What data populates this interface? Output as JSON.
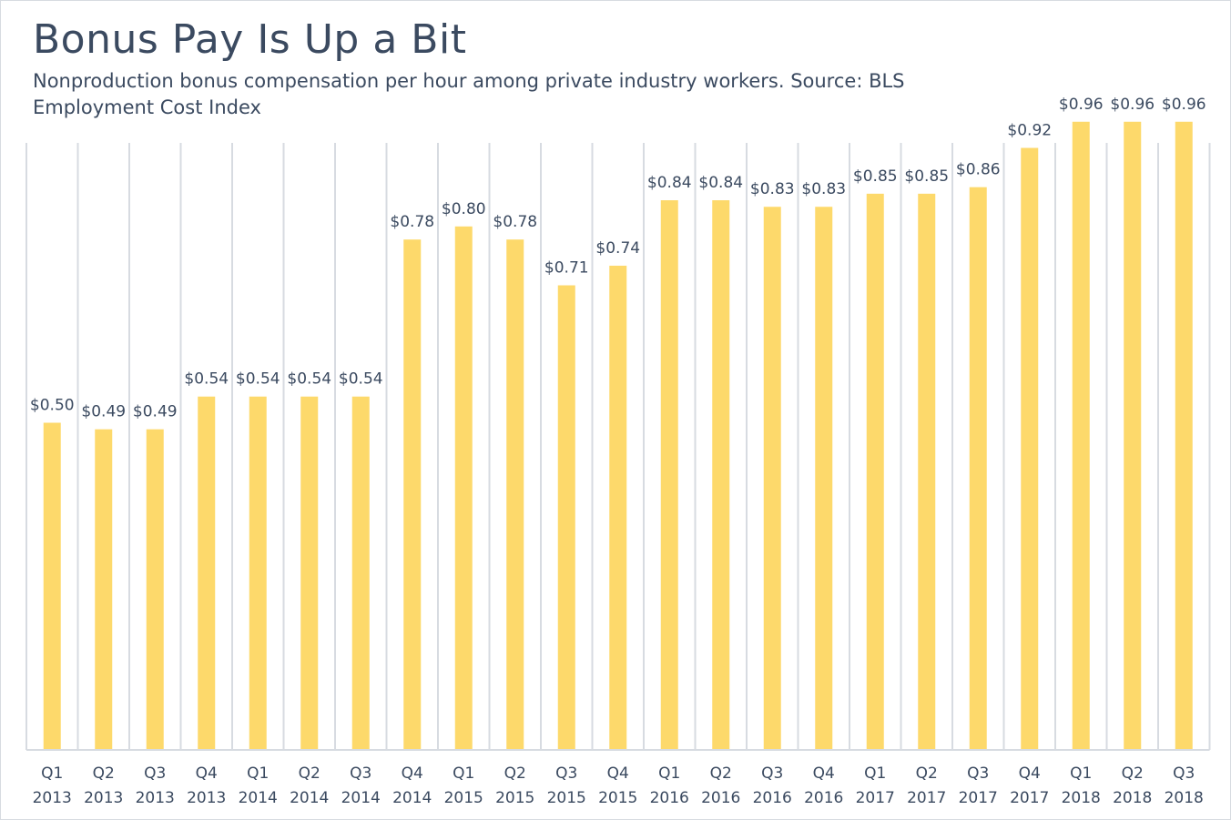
{
  "chart_data": {
    "type": "bar",
    "title": "Bonus Pay Is Up a Bit",
    "subtitle": "Nonproduction bonus compensation per hour among private industry workers. Source: BLS Employment Cost Index",
    "xlabel": "",
    "ylabel": "",
    "ylim": [
      0,
      1.2
    ],
    "grid": "vertical",
    "bar_color": "#fdd96b",
    "grid_color": "#d7dbe1",
    "text_color": "#3b4a60",
    "categories": [
      [
        "Q1",
        "2013"
      ],
      [
        "Q2",
        "2013"
      ],
      [
        "Q3",
        "2013"
      ],
      [
        "Q4",
        "2013"
      ],
      [
        "Q1",
        "2014"
      ],
      [
        "Q2",
        "2014"
      ],
      [
        "Q3",
        "2014"
      ],
      [
        "Q4",
        "2014"
      ],
      [
        "Q1",
        "2015"
      ],
      [
        "Q2",
        "2015"
      ],
      [
        "Q3",
        "2015"
      ],
      [
        "Q4",
        "2015"
      ],
      [
        "Q1",
        "2016"
      ],
      [
        "Q2",
        "2016"
      ],
      [
        "Q3",
        "2016"
      ],
      [
        "Q4",
        "2016"
      ],
      [
        "Q1",
        "2017"
      ],
      [
        "Q2",
        "2017"
      ],
      [
        "Q3",
        "2017"
      ],
      [
        "Q4",
        "2017"
      ],
      [
        "Q1",
        "2018"
      ],
      [
        "Q2",
        "2018"
      ],
      [
        "Q3",
        "2018"
      ]
    ],
    "values": [
      0.5,
      0.49,
      0.49,
      0.54,
      0.54,
      0.54,
      0.54,
      0.78,
      0.8,
      0.78,
      0.71,
      0.74,
      0.84,
      0.84,
      0.83,
      0.83,
      0.85,
      0.85,
      0.86,
      0.92,
      0.96,
      0.96,
      0.96
    ],
    "labels": [
      "$0.50",
      "$0.49",
      "$0.49",
      "$0.54",
      "$0.54",
      "$0.54",
      "$0.54",
      "$0.78",
      "$0.80",
      "$0.78",
      "$0.71",
      "$0.74",
      "$0.84",
      "$0.84",
      "$0.83",
      "$0.83",
      "$0.85",
      "$0.85",
      "$0.86",
      "$0.92",
      "$0.96",
      "$0.96",
      "$0.96"
    ]
  }
}
